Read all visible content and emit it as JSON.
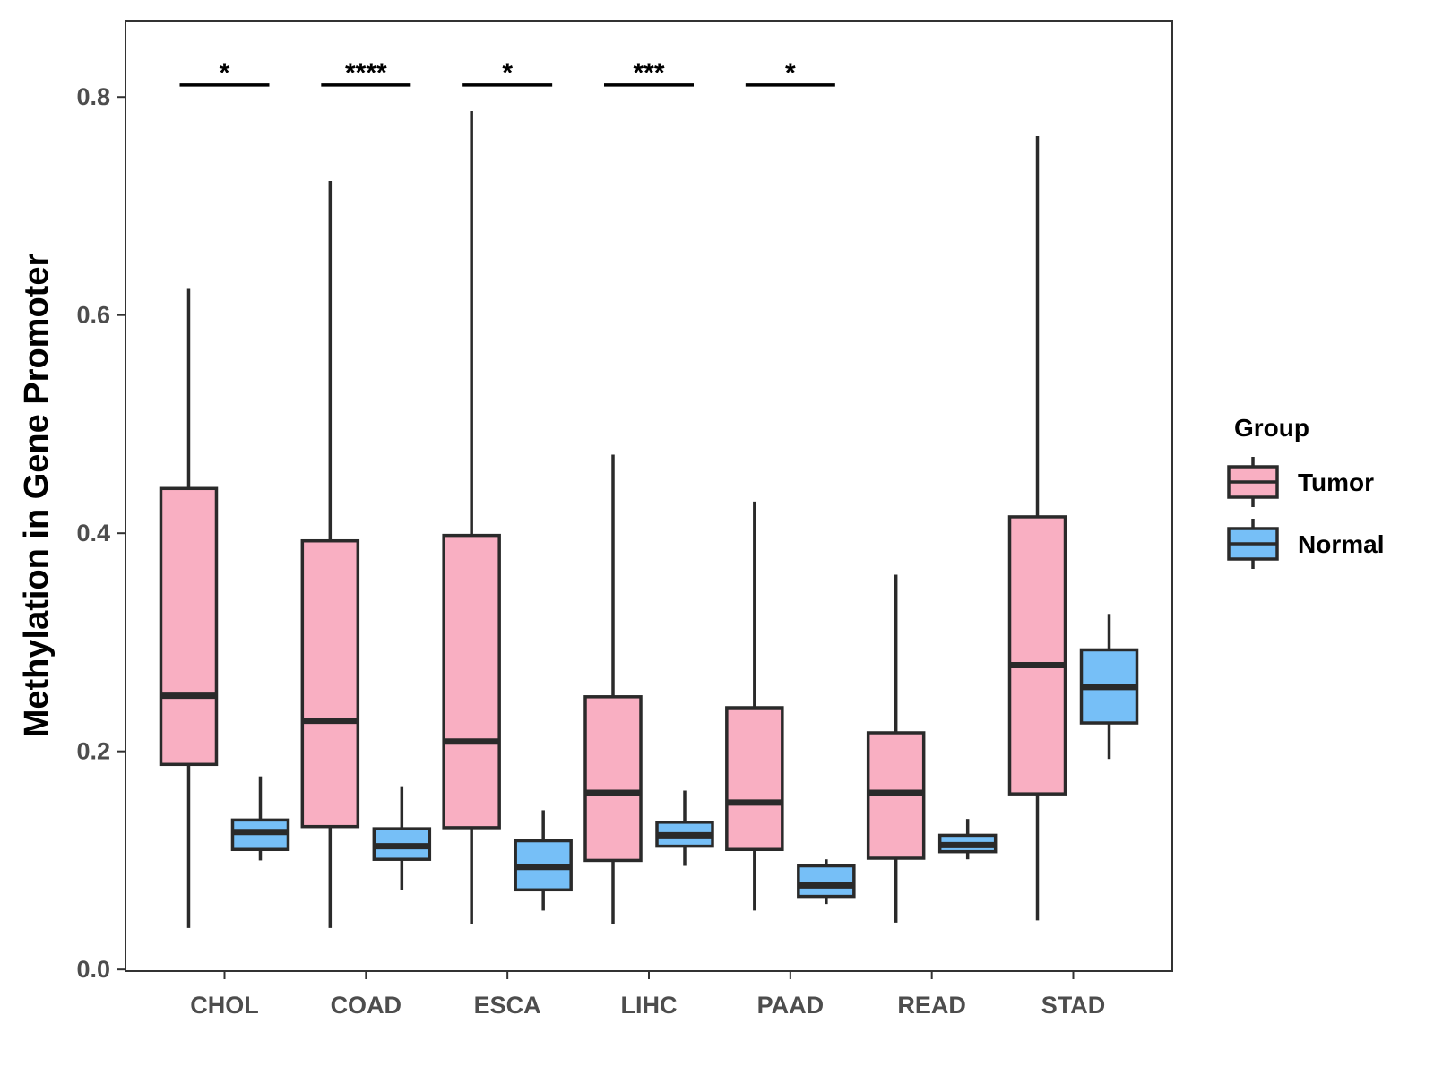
{
  "chart_data": {
    "type": "box",
    "title": "",
    "xlabel": "",
    "ylabel": "Methylation in Gene Promoter",
    "ylim": [
      -0.0015,
      0.87
    ],
    "yticks": [
      0.0,
      0.2,
      0.4,
      0.6,
      0.8
    ],
    "ytick_labels": [
      "0.0",
      "0.2",
      "0.4",
      "0.6",
      "0.8"
    ],
    "categories": [
      "CHOL",
      "COAD",
      "ESCA",
      "LIHC",
      "PAAD",
      "READ",
      "STAD"
    ],
    "legend": {
      "title": "Group",
      "position": "right",
      "entries": [
        {
          "name": "Tumor",
          "color": "#f9afc2"
        },
        {
          "name": "Normal",
          "color": "#76bff7"
        }
      ]
    },
    "series": [
      {
        "name": "Tumor",
        "color": "#f9afc2",
        "boxes": [
          {
            "min": 0.038,
            "q1": 0.188,
            "median": 0.251,
            "q3": 0.441,
            "max": 0.624
          },
          {
            "min": 0.038,
            "q1": 0.131,
            "median": 0.228,
            "q3": 0.393,
            "max": 0.723
          },
          {
            "min": 0.042,
            "q1": 0.13,
            "median": 0.209,
            "q3": 0.398,
            "max": 0.787
          },
          {
            "min": 0.042,
            "q1": 0.1,
            "median": 0.162,
            "q3": 0.25,
            "max": 0.472
          },
          {
            "min": 0.054,
            "q1": 0.11,
            "median": 0.153,
            "q3": 0.24,
            "max": 0.429
          },
          {
            "min": 0.043,
            "q1": 0.102,
            "median": 0.162,
            "q3": 0.217,
            "max": 0.362
          },
          {
            "min": 0.045,
            "q1": 0.161,
            "median": 0.279,
            "q3": 0.415,
            "max": 0.764
          }
        ]
      },
      {
        "name": "Normal",
        "color": "#76bff7",
        "boxes": [
          {
            "min": 0.1,
            "q1": 0.11,
            "median": 0.126,
            "q3": 0.137,
            "max": 0.177
          },
          {
            "min": 0.073,
            "q1": 0.101,
            "median": 0.113,
            "q3": 0.129,
            "max": 0.168
          },
          {
            "min": 0.054,
            "q1": 0.073,
            "median": 0.094,
            "q3": 0.118,
            "max": 0.146
          },
          {
            "min": 0.095,
            "q1": 0.113,
            "median": 0.123,
            "q3": 0.135,
            "max": 0.164
          },
          {
            "min": 0.06,
            "q1": 0.067,
            "median": 0.077,
            "q3": 0.095,
            "max": 0.101
          },
          {
            "min": 0.101,
            "q1": 0.108,
            "median": 0.114,
            "q3": 0.123,
            "max": 0.138
          },
          {
            "min": 0.193,
            "q1": 0.226,
            "median": 0.259,
            "q3": 0.293,
            "max": 0.326
          }
        ]
      }
    ],
    "significance": [
      {
        "category": "CHOL",
        "label": "*",
        "y": 0.811
      },
      {
        "category": "COAD",
        "label": "****",
        "y": 0.811
      },
      {
        "category": "ESCA",
        "label": "*",
        "y": 0.811
      },
      {
        "category": "LIHC",
        "label": "***",
        "y": 0.811
      },
      {
        "category": "PAAD",
        "label": "*",
        "y": 0.811
      }
    ],
    "grid": false
  }
}
